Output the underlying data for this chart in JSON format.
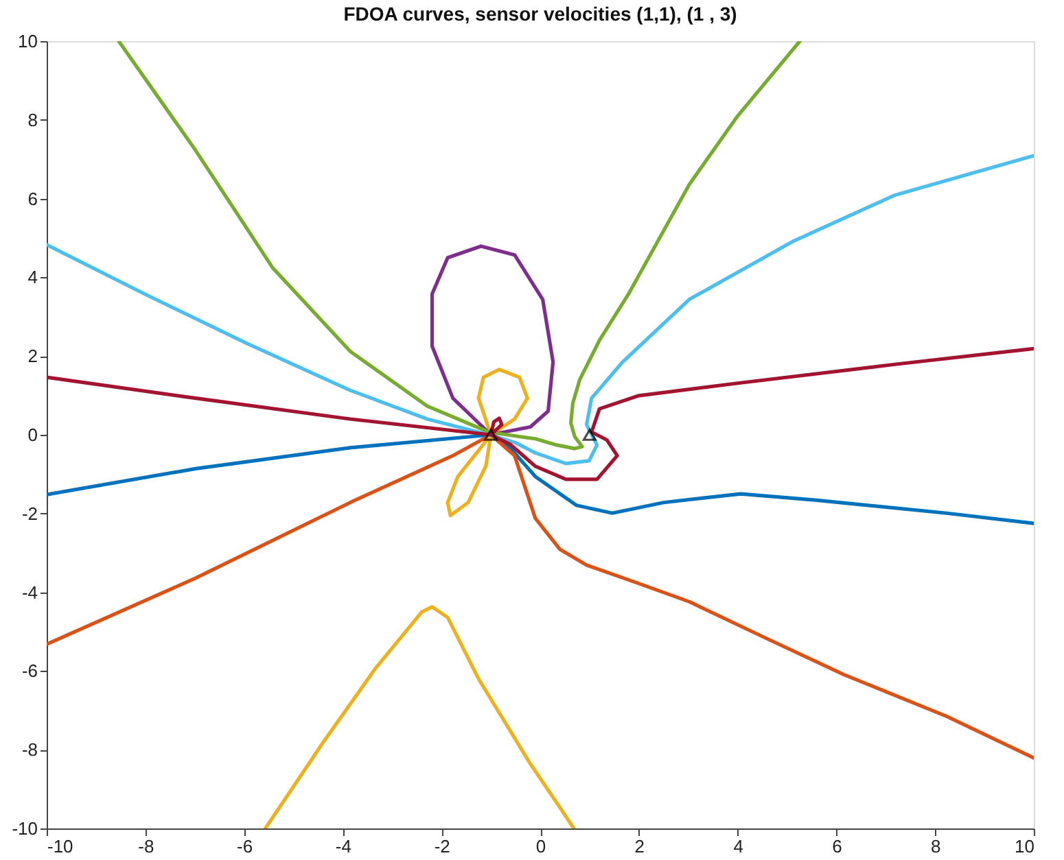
{
  "chart_data": {
    "type": "line",
    "title": "FDOA curves, sensor velocities (1,1), (1 , 3)",
    "xlim": [
      -10,
      10
    ],
    "ylim": [
      -10,
      10
    ],
    "xticks": [
      -10,
      -8,
      -6,
      -4,
      -2,
      0,
      2,
      4,
      6,
      8,
      10
    ],
    "yticks": [
      -10,
      -8,
      -6,
      -4,
      -2,
      0,
      2,
      4,
      6,
      8,
      10
    ],
    "grid": false,
    "line_style": "solid",
    "series": [
      {
        "color": "#0072bd",
        "x": [
          -10,
          -6.98,
          -3.85,
          -1,
          -0.6,
          -0.1,
          0.73,
          1.46,
          2.5,
          4.06,
          5.6,
          8.23,
          10
        ],
        "values": [
          -1.52,
          -0.86,
          -0.33,
          0,
          -0.35,
          -1.06,
          -1.79,
          -1.99,
          -1.72,
          -1.5,
          -1.66,
          -1.99,
          -2.25
        ]
      },
      {
        "color": "#d95319",
        "x": [
          -10,
          -6.98,
          -3.85,
          -1.77,
          -1,
          -0.52,
          -0.1,
          0.4,
          0.94,
          1.98,
          3.02,
          4.58,
          6.15,
          8.23,
          10
        ],
        "values": [
          -5.32,
          -3.64,
          -1.72,
          -0.53,
          0,
          -0.53,
          -2.12,
          -2.91,
          -3.31,
          -3.77,
          -4.24,
          -5.17,
          -6.09,
          -7.15,
          -8.21
        ]
      },
      {
        "color": "#edb120",
        "x": [
          -5.57,
          -4.375,
          -3.33,
          -2.4,
          -2.19,
          -1.875,
          -1.25,
          -0.21,
          0.4,
          0.68
        ],
        "values": [
          -10,
          -7.77,
          -5.92,
          -4.5,
          -4.37,
          -4.64,
          -6.2,
          -8.34,
          -9.47,
          -10
        ]
      },
      {
        "color": "#edb120",
        "x": [
          -1,
          -1.25
        ],
        "values": [
          0,
          0.93
        ]
      },
      {
        "color": "#edb120",
        "x": [
          -1.25,
          -1.15,
          -0.83,
          -0.42,
          -0.26
        ],
        "values": [
          0.93,
          1.46,
          1.66,
          1.46,
          0.93
        ]
      },
      {
        "color": "#edb120",
        "x": [
          -0.26,
          -0.52,
          -1
        ],
        "values": [
          0.93,
          0.4,
          0
        ]
      },
      {
        "color": "#edb120",
        "x": [
          -1,
          -1.1,
          -1.46,
          -1.82,
          -1.875
        ],
        "values": [
          0,
          -0.79,
          -1.72,
          -2.05,
          -1.72
        ]
      },
      {
        "color": "#edb120",
        "x": [
          -1.875,
          -1.67,
          -1.25,
          -1
        ],
        "values": [
          -1.72,
          -1.06,
          -0.4,
          0
        ]
      },
      {
        "color": "#7e2f8e",
        "x": [
          -1,
          -1.77,
          -2.19,
          -2.19,
          -1.875,
          -1.2,
          -0.52,
          0.05,
          0.26,
          0.16,
          -0.2,
          -0.73,
          -0.9
        ],
        "values": [
          0,
          0.93,
          2.25,
          3.58,
          4.5,
          4.79,
          4.57,
          3.44,
          1.85,
          0.6,
          0.2,
          0.07,
          0.03
        ]
      },
      {
        "color": "#77ac30",
        "x": [
          -8.54,
          -6.98,
          -5.42,
          -3.85,
          -2.29,
          -1.04,
          -0.5,
          -0.1,
          0.3,
          0.7,
          0.85,
          0.7,
          0.62,
          0.66,
          0.8,
          1.2,
          1.8,
          3.02,
          4.0,
          5.26
        ],
        "values": [
          10,
          7.22,
          4.24,
          2.12,
          0.73,
          0.07,
          -0.03,
          -0.1,
          -0.25,
          -0.35,
          -0.3,
          -0.05,
          0.3,
          0.8,
          1.4,
          2.4,
          3.6,
          6.36,
          8.1,
          10
        ]
      },
      {
        "color": "#4dbeee",
        "x": [
          -10,
          -8.02,
          -5.94,
          -3.85,
          -2.29,
          -1.04,
          -0.5,
          -0.1,
          0.52,
          0.99,
          1.15,
          0.94,
          1.04,
          1.67,
          3.02,
          5.1,
          7.19,
          10
        ],
        "values": [
          4.83,
          3.58,
          2.32,
          1.13,
          0.4,
          0,
          -0.2,
          -0.46,
          -0.73,
          -0.66,
          -0.26,
          0.26,
          0.93,
          1.85,
          3.44,
          4.9,
          6.09,
          7.09
        ]
      },
      {
        "color": "#a2142f",
        "x": [
          -10,
          -6.98,
          -3.85,
          -1,
          -0.94,
          -0.83,
          -0.78,
          -1,
          -0.6,
          -0.1,
          0.52,
          1.15,
          1.56,
          1.35,
          1.04,
          1.2,
          1.98,
          4.06,
          7.19,
          10
        ],
        "values": [
          1.46,
          0.93,
          0.4,
          0,
          0.33,
          0.42,
          0.26,
          0,
          -0.25,
          -0.8,
          -1.13,
          -1.13,
          -0.53,
          -0.13,
          0.07,
          0.66,
          0.99,
          1.32,
          1.79,
          2.19
        ]
      },
      {
        "type": "scatter",
        "marker": "triangle",
        "color": "#000000",
        "x": [
          -1,
          1
        ],
        "values": [
          0,
          0
        ]
      }
    ]
  }
}
